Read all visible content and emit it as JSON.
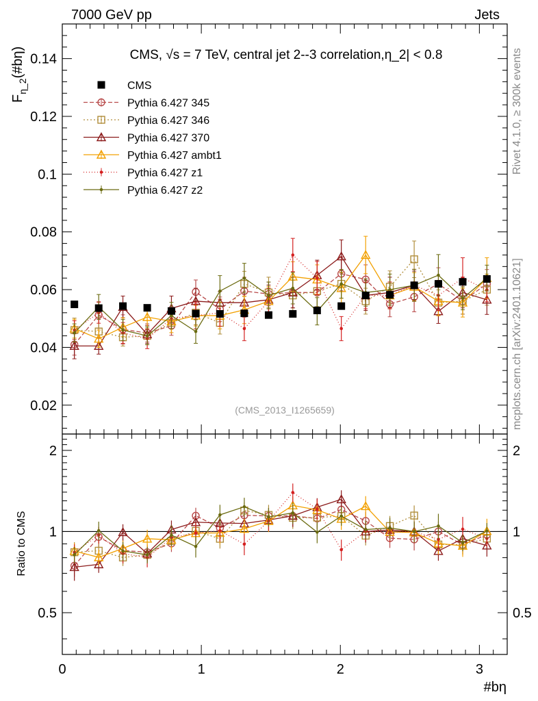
{
  "header": {
    "left": "7000 GeV pp",
    "right": "Jets"
  },
  "side_labels": {
    "rivet": "Rivet 4.1.0, ≥ 300k events",
    "mcplots": "mcplots.cern.ch [arXiv:2401.10621]"
  },
  "chart_data": {
    "type": "line",
    "title": "CMS, √s = 7 TeV, central jet 2--3 correlation,η_2| < 0.8",
    "analysis_tag": "(CMS_2013_I1265659)",
    "xlabel": "#bη",
    "ylabel": "F_η_2(#bη)",
    "ylabel_parts": {
      "main": "F",
      "sub": "η_2",
      "arg": "(#bη)"
    },
    "xlim": [
      0,
      3.2
    ],
    "ylim": [
      0.01,
      0.152
    ],
    "ratio_ylabel": "Ratio to CMS",
    "ratio_ylim": [
      0.35,
      2.3
    ],
    "x_ticks": [
      "0",
      "1",
      "2",
      "3"
    ],
    "y_ticks": [
      "0.02",
      "0.04",
      "0.06",
      "0.08",
      "0.1",
      "0.12",
      "0.14"
    ],
    "ratio_ticks": [
      "0.5",
      "1",
      "2"
    ],
    "x": [
      0.087,
      0.262,
      0.436,
      0.611,
      0.785,
      0.96,
      1.134,
      1.309,
      1.484,
      1.658,
      1.833,
      2.007,
      2.182,
      2.356,
      2.531,
      2.705,
      2.88,
      3.054
    ],
    "data": {
      "name": "CMS",
      "values": [
        0.0549,
        0.0536,
        0.0543,
        0.0537,
        0.0526,
        0.0517,
        0.0516,
        0.0518,
        0.0512,
        0.0516,
        0.0528,
        0.0543,
        0.058,
        0.0582,
        0.0615,
        0.062,
        0.0627,
        0.0637
      ]
    },
    "series": [
      {
        "name": "Pythia 6.427 345",
        "color": "#b84a4a",
        "dash": "6,3",
        "marker": "circle",
        "values": [
          0.041,
          0.0512,
          0.0462,
          0.045,
          0.0475,
          0.0592,
          0.0532,
          0.0595,
          0.0585,
          0.059,
          0.059,
          0.0655,
          0.0635,
          0.055,
          0.0575,
          0.062,
          0.056,
          0.062
        ]
      },
      {
        "name": "Pythia 6.427 346",
        "color": "#b08d3a",
        "dash": "2,3",
        "marker": "square",
        "values": [
          0.046,
          0.0455,
          0.0435,
          0.044,
          0.0485,
          0.052,
          0.0485,
          0.062,
          0.059,
          0.058,
          0.0595,
          0.062,
          0.056,
          0.061,
          0.0705,
          0.0555,
          0.056,
          0.06
        ]
      },
      {
        "name": "Pythia 6.427 370",
        "color": "#8b1a1a",
        "dash": "",
        "marker": "triangle",
        "values": [
          0.0405,
          0.0405,
          0.054,
          0.0445,
          0.0535,
          0.056,
          0.0555,
          0.0555,
          0.0565,
          0.059,
          0.065,
          0.0715,
          0.058,
          0.059,
          0.0615,
          0.0525,
          0.059,
          0.0565
        ]
      },
      {
        "name": "Pythia 6.427 ambt1",
        "color": "#f2a000",
        "dash": "",
        "marker": "triangle",
        "values": [
          0.0465,
          0.043,
          0.047,
          0.0505,
          0.049,
          0.051,
          0.051,
          0.053,
          0.056,
          0.0645,
          0.0635,
          0.0605,
          0.072,
          0.058,
          0.061,
          0.056,
          0.0555,
          0.064
        ]
      },
      {
        "name": "Pythia 6.427 z1",
        "color": "#d42020",
        "dash": "1,3",
        "marker": "dot",
        "values": [
          0.046,
          0.052,
          0.045,
          0.043,
          0.05,
          0.051,
          0.052,
          0.0465,
          0.056,
          0.072,
          0.064,
          0.0465,
          0.058,
          0.058,
          0.0615,
          0.058,
          0.064,
          0.06
        ]
      },
      {
        "name": "Pythia 6.427 z2",
        "color": "#6b6b10",
        "dash": "",
        "marker": "dot",
        "values": [
          0.045,
          0.054,
          0.046,
          0.044,
          0.051,
          0.0455,
          0.0595,
          0.064,
          0.058,
          0.0605,
          0.0525,
          0.062,
          0.059,
          0.06,
          0.0615,
          0.065,
          0.057,
          0.064
        ]
      }
    ]
  }
}
